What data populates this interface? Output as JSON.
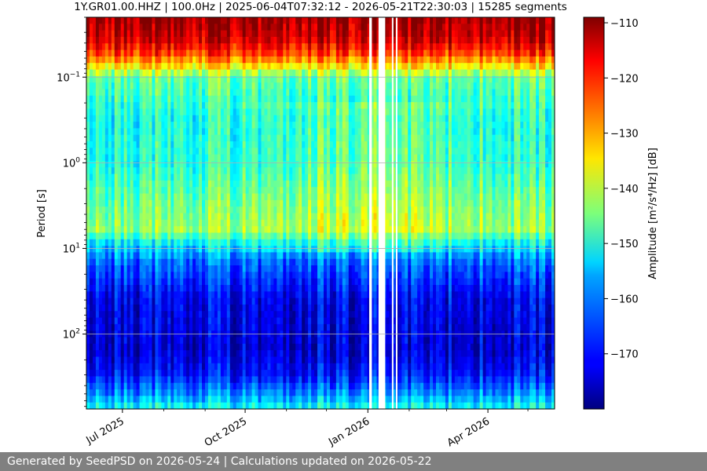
{
  "chart_data": {
    "type": "heatmap",
    "title": "1Y.GR01.00.HHZ | 100.0Hz | 2025-06-04T07:32:12 - 2026-05-21T22:30:03 | 15285 segments",
    "ylabel": "Period [s]",
    "yscale": "log",
    "ylim": [
      0.02,
      750
    ],
    "y_inverted": true,
    "x_range": [
      "2025-06-04",
      "2026-05-21"
    ],
    "x_ticks": [
      {
        "date": "2025-07-01",
        "label": "Jul 2025"
      },
      {
        "date": "2025-10-01",
        "label": "Oct 2025"
      },
      {
        "date": "2026-01-01",
        "label": "Jan 2026"
      },
      {
        "date": "2026-04-01",
        "label": "Apr 2026"
      }
    ],
    "y_ticks": [
      {
        "value": 0.1,
        "base": "10",
        "exp": "−1"
      },
      {
        "value": 1,
        "base": "10",
        "exp": "0"
      },
      {
        "value": 10,
        "base": "10",
        "exp": "1"
      },
      {
        "value": 100,
        "base": "10",
        "exp": "2"
      }
    ],
    "grid": true,
    "colormap": "jet",
    "colorbar": {
      "label": "Amplitude [m²/s⁴/Hz] [dB]",
      "range": [
        -180,
        -109
      ],
      "ticks": [
        -110,
        -120,
        -130,
        -140,
        -150,
        -160,
        -170
      ]
    },
    "period_profile_db": [
      {
        "period": 0.02,
        "db": -111
      },
      {
        "period": 0.035,
        "db": -114
      },
      {
        "period": 0.05,
        "db": -120
      },
      {
        "period": 0.07,
        "db": -131
      },
      {
        "period": 0.1,
        "db": -146
      },
      {
        "period": 0.3,
        "db": -152
      },
      {
        "period": 1,
        "db": -151
      },
      {
        "period": 3,
        "db": -146
      },
      {
        "period": 6,
        "db": -143
      },
      {
        "period": 9,
        "db": -155
      },
      {
        "period": 15,
        "db": -164
      },
      {
        "period": 40,
        "db": -172
      },
      {
        "period": 150,
        "db": -174
      },
      {
        "period": 300,
        "db": -170
      },
      {
        "period": 500,
        "db": -161
      },
      {
        "period": 750,
        "db": -152
      }
    ],
    "data_gaps": [
      {
        "start": "2026-01-02",
        "end": "2026-01-04"
      },
      {
        "start": "2026-01-09",
        "end": "2026-01-14"
      },
      {
        "start": "2026-01-19",
        "end": "2026-01-20"
      },
      {
        "start": "2026-01-22",
        "end": "2026-01-23"
      }
    ]
  },
  "footer": {
    "text": "Generated by SeedPSD on 2026-05-24 | Calculations updated on 2026-05-22"
  },
  "colors": {
    "background": "#ffffff",
    "footer_bg": "#808080",
    "footer_text": "#ffffff",
    "grid": "#b0b0b0"
  }
}
